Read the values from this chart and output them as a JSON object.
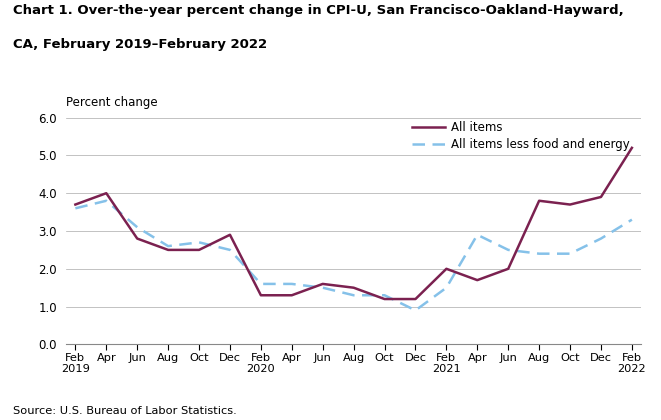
{
  "title_line1": "Chart 1. Over-the-year percent change in CPI-U, San Francisco-Oakland-Hayward,",
  "title_line2": "CA, February 2019–February 2022",
  "ylabel": "Percent change",
  "source": "Source: U.S. Bureau of Labor Statistics.",
  "all_items": [
    3.7,
    4.0,
    2.8,
    2.5,
    2.5,
    2.9,
    1.3,
    1.3,
    1.6,
    1.5,
    1.2,
    1.2,
    2.0,
    1.7,
    2.0,
    3.8,
    3.7,
    3.9,
    5.2
  ],
  "core_items": [
    3.6,
    3.8,
    3.1,
    2.6,
    2.7,
    2.5,
    1.6,
    1.6,
    1.5,
    1.3,
    1.3,
    0.9,
    1.5,
    2.9,
    2.5,
    2.4,
    2.4,
    2.8,
    3.3
  ],
  "color_all": "#7B2150",
  "color_core": "#85C1E9",
  "ylim": [
    0.0,
    6.0
  ],
  "yticks": [
    0.0,
    1.0,
    2.0,
    3.0,
    4.0,
    5.0,
    6.0
  ],
  "tick_labels": [
    "Feb\n2019",
    "Apr",
    "Jun",
    "Aug",
    "Oct",
    "Dec",
    "Feb\n2020",
    "Apr",
    "Jun",
    "Aug",
    "Oct",
    "Dec",
    "Feb\n2021",
    "Apr",
    "Jun",
    "Aug",
    "Oct",
    "Dec",
    "Feb\n2022"
  ],
  "legend_all": "All items",
  "legend_core": "All items less food and energy"
}
